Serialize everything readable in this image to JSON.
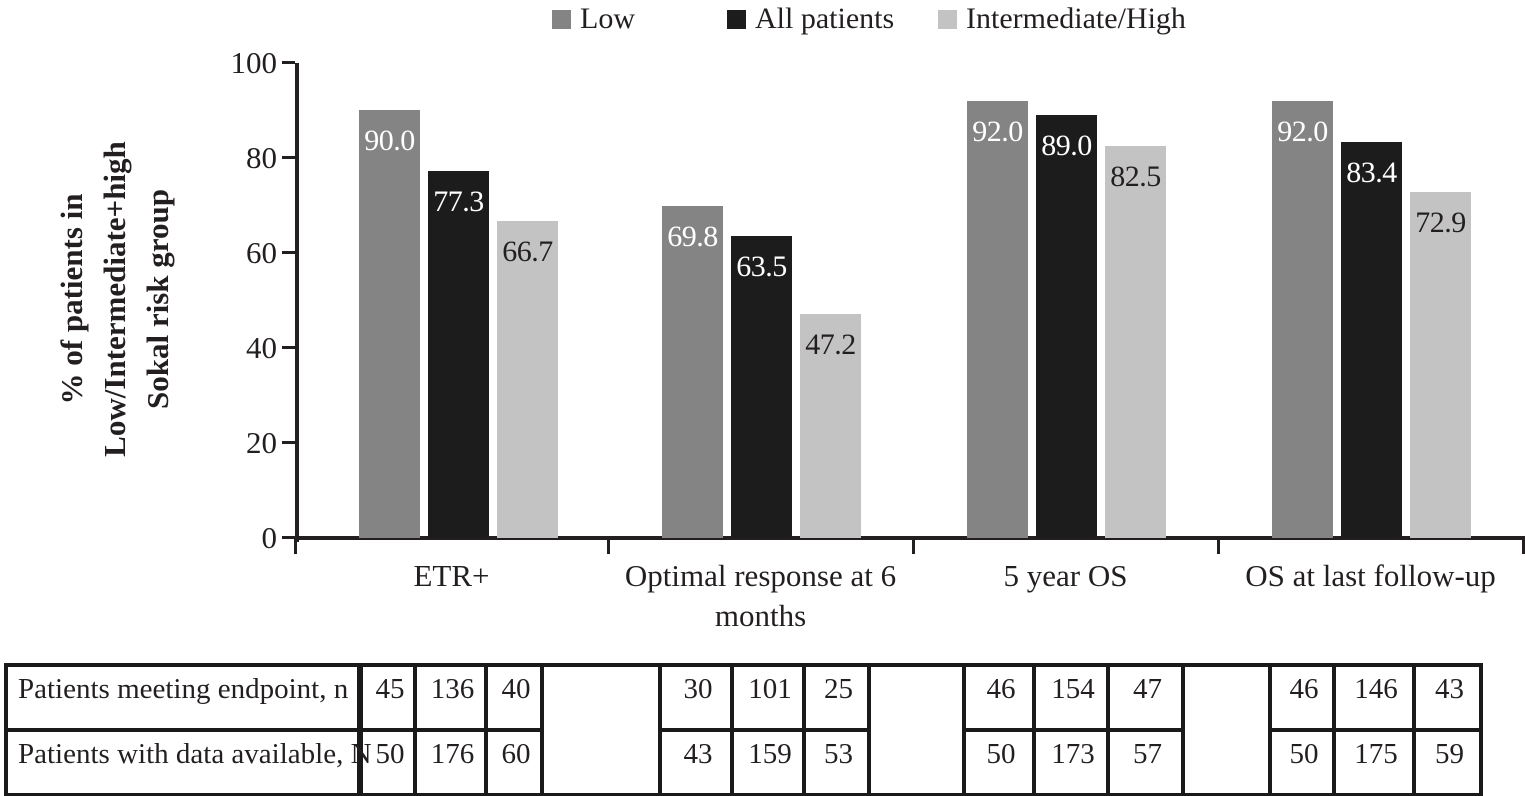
{
  "chart_data": {
    "type": "bar",
    "title": "",
    "categories": [
      "ETR+",
      "Optimal response at 6\nmonths",
      "5 year OS",
      "OS at last follow-up"
    ],
    "series": [
      {
        "name": "Low",
        "color": "#848484",
        "label_color": "#ffffff",
        "values": [
          "90.0",
          "69.8",
          "92.0",
          "92.0"
        ]
      },
      {
        "name": "All patients",
        "color": "#1c1c1c",
        "label_color": "#ffffff",
        "values": [
          "77.3",
          "63.5",
          "89.0",
          "83.4"
        ]
      },
      {
        "name": "Intermediate/High",
        "color": "#c3c3c3",
        "label_color": "#231f20",
        "values": [
          "66.7",
          "47.2",
          "82.5",
          "72.9"
        ]
      }
    ],
    "ylabel": "% of patients in Low/Intermediate+high Sokal risk group",
    "ylabel_lines": [
      "% of patients in",
      "Low/Intermediate+high",
      "Sokal risk group"
    ],
    "ylim": [
      0,
      100
    ],
    "yticks": [
      0,
      20,
      40,
      60,
      80,
      100
    ],
    "grid": false,
    "legend_position": "top",
    "bar_value_labels_inside_top": true
  },
  "legend": {
    "items": [
      {
        "label": "Low"
      },
      {
        "label": "All patients"
      },
      {
        "label": "Intermediate/High"
      }
    ]
  },
  "table": {
    "rows": [
      {
        "label": "Patients meeting endpoint, n",
        "groups": [
          [
            "45",
            "136",
            "40"
          ],
          [
            "30",
            "101",
            "25"
          ],
          [
            "46",
            "154",
            "47"
          ],
          [
            "46",
            "146",
            "43"
          ]
        ]
      },
      {
        "label": "Patients with data available, N",
        "groups": [
          [
            "50",
            "176",
            "60"
          ],
          [
            "43",
            "159",
            "53"
          ],
          [
            "50",
            "173",
            "57"
          ],
          [
            "50",
            "175",
            "59"
          ]
        ]
      }
    ]
  },
  "colors": {
    "axis": "#231f20",
    "table_border": "#1a1a1a",
    "background": "#ffffff"
  }
}
